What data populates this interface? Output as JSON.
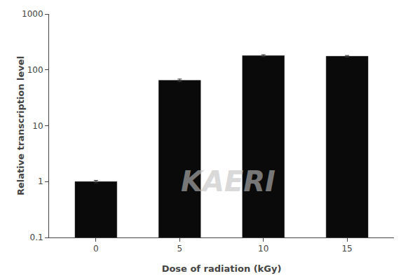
{
  "chart_data": {
    "type": "bar",
    "x": [
      0,
      5,
      10,
      15
    ],
    "values": [
      1.0,
      65.0,
      180.0,
      175.0
    ],
    "error_bars": [
      0.05,
      3.5,
      7.0,
      6.0
    ],
    "color": "#0a0a0a",
    "xlabel": "Dose of radiation (kGy)",
    "ylabel": "Relative transcription level",
    "xlim": [
      -2.8,
      17.8
    ],
    "xticks": [
      0,
      5,
      10,
      15
    ],
    "ylim": [
      0.1,
      1000
    ],
    "yticks": [
      0.1,
      1,
      10,
      100,
      1000
    ],
    "log": "y",
    "grid": false,
    "annotations": [
      "KAERI"
    ]
  }
}
